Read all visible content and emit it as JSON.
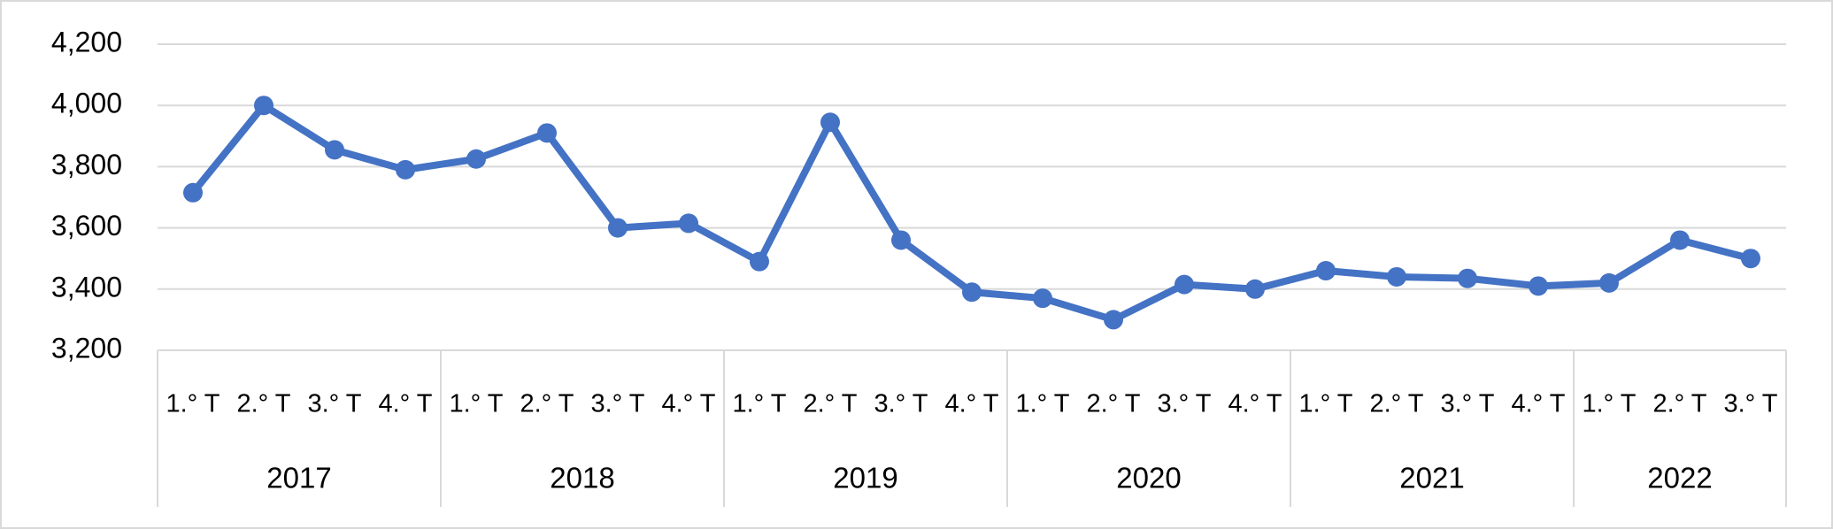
{
  "chart_data": {
    "type": "line",
    "groups": [
      {
        "name": "2017",
        "categories": [
          "1.° T",
          "2.° T",
          "3.° T",
          "4.° T"
        ]
      },
      {
        "name": "2018",
        "categories": [
          "1.° T",
          "2.° T",
          "3.° T",
          "4.° T"
        ]
      },
      {
        "name": "2019",
        "categories": [
          "1.° T",
          "2.° T",
          "3.° T",
          "4.° T"
        ]
      },
      {
        "name": "2020",
        "categories": [
          "1.° T",
          "2.° T",
          "3.° T",
          "4.° T"
        ]
      },
      {
        "name": "2021",
        "categories": [
          "1.° T",
          "2.° T",
          "3.° T",
          "4.° T"
        ]
      },
      {
        "name": "2022",
        "categories": [
          "1.° T",
          "2.° T",
          "3.° T"
        ]
      }
    ],
    "values": [
      3715,
      4000,
      3855,
      3790,
      3825,
      3910,
      3600,
      3615,
      3490,
      3945,
      3560,
      3390,
      3370,
      3300,
      3415,
      3400,
      3460,
      3440,
      3435,
      3410,
      3420,
      3560,
      3500
    ],
    "color": "#4472c4",
    "ylim": [
      3200,
      4200
    ],
    "yticks": [
      {
        "value": 3200,
        "label": "3,200"
      },
      {
        "value": 3400,
        "label": "3,400"
      },
      {
        "value": 3600,
        "label": "3,600"
      },
      {
        "value": 3800,
        "label": "3,800"
      },
      {
        "value": 4000,
        "label": "4,000"
      },
      {
        "value": 4200,
        "label": "4,200"
      }
    ],
    "grid": true
  }
}
